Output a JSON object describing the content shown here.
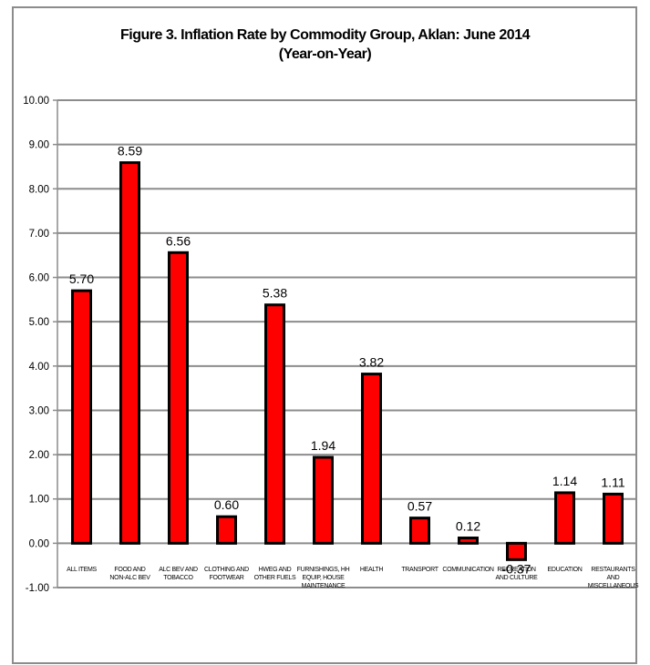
{
  "chart_data": {
    "type": "bar",
    "title": "Figure 3. Inflation Rate by Commodity Group, Aklan: June 2014",
    "subtitle": "(Year-on-Year)",
    "xlabel": "",
    "ylabel": "",
    "ylim": [
      -1.0,
      10.0
    ],
    "yticks": [
      "10.00",
      "9.00",
      "8.00",
      "7.00",
      "6.00",
      "5.00",
      "4.00",
      "3.00",
      "2.00",
      "1.00",
      "0.00",
      "-1.00"
    ],
    "grid": true,
    "legend": "none",
    "bar_color": "#ff0000",
    "bar_outline": "#000000",
    "categories": [
      [
        "ALL ITEMS"
      ],
      [
        "FOOD AND",
        "NON-ALC BEV"
      ],
      [
        "ALC BEV AND",
        "TOBACCO"
      ],
      [
        "CLOTHING AND",
        "FOOTWEAR"
      ],
      [
        "HWEG AND",
        "OTHER FUELS"
      ],
      [
        "FURNISHINGS, HH",
        "EQUIP, HOUSE",
        "MAINTENANCE"
      ],
      [
        "HEALTH"
      ],
      [
        "TRANSPORT"
      ],
      [
        "COMMUNICATION"
      ],
      [
        "RECREATION",
        "AND CULTURE"
      ],
      [
        "EDUCATION"
      ],
      [
        "RESTAURANTS",
        "AND",
        "MISCELLANEOUS"
      ]
    ],
    "values": [
      5.7,
      8.59,
      6.56,
      0.6,
      5.38,
      1.94,
      3.82,
      0.57,
      0.12,
      -0.37,
      1.14,
      1.11
    ],
    "value_labels": [
      "5.70",
      "8.59",
      "6.56",
      "0.60",
      "5.38",
      "1.94",
      "3.82",
      "0.57",
      "0.12",
      "-0.37",
      "1.14",
      "1.11"
    ]
  }
}
